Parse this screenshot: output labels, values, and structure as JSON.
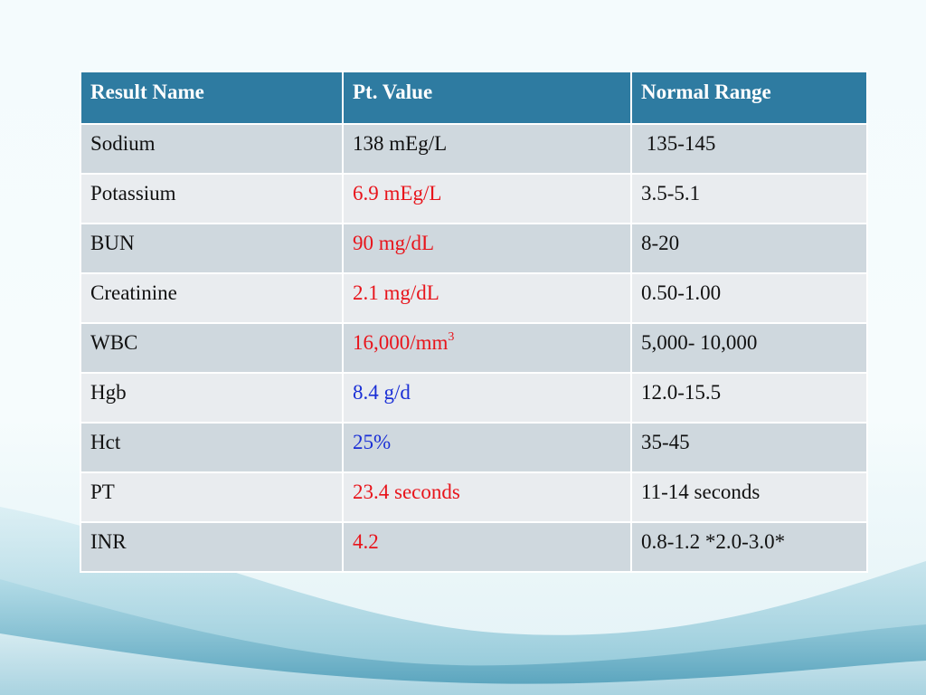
{
  "table": {
    "headers": [
      "Result Name",
      "Pt. Value",
      "Normal Range"
    ],
    "rows": [
      {
        "name": "Sodium",
        "value": "138 mEg/L",
        "value_sup": "",
        "range": " 135-145",
        "flag": "normal"
      },
      {
        "name": "Potassium",
        "value": "6.9 mEg/L",
        "value_sup": "",
        "range": "3.5-5.1",
        "flag": "high"
      },
      {
        "name": "BUN",
        "value": "90 mg/dL",
        "value_sup": "",
        "range": "8-20",
        "flag": "high"
      },
      {
        "name": "Creatinine",
        "value": "2.1 mg/dL",
        "value_sup": "",
        "range": "0.50-1.00",
        "flag": "high"
      },
      {
        "name": "WBC",
        "value": "16,000/mm",
        "value_sup": "3",
        "range": "5,000- 10,000",
        "flag": "high"
      },
      {
        "name": "Hgb",
        "value": "8.4 g/d",
        "value_sup": "",
        "range": "12.0-15.5",
        "flag": "low"
      },
      {
        "name": "Hct",
        "value": "25%",
        "value_sup": "",
        "range": "35-45",
        "flag": "low"
      },
      {
        "name": "PT",
        "value": "23.4 seconds",
        "value_sup": "",
        "range": "11-14 seconds",
        "flag": "high"
      },
      {
        "name": "INR",
        "value": "4.2",
        "value_sup": "",
        "range": "0.8-1.2 *2.0-3.0*",
        "flag": "high"
      }
    ]
  },
  "colors": {
    "header_bg": "#2e7ba1",
    "high_value": "#e8141b",
    "low_value": "#1a2fd6",
    "row_odd": "#cfd8de",
    "row_even": "#e9ecef"
  }
}
